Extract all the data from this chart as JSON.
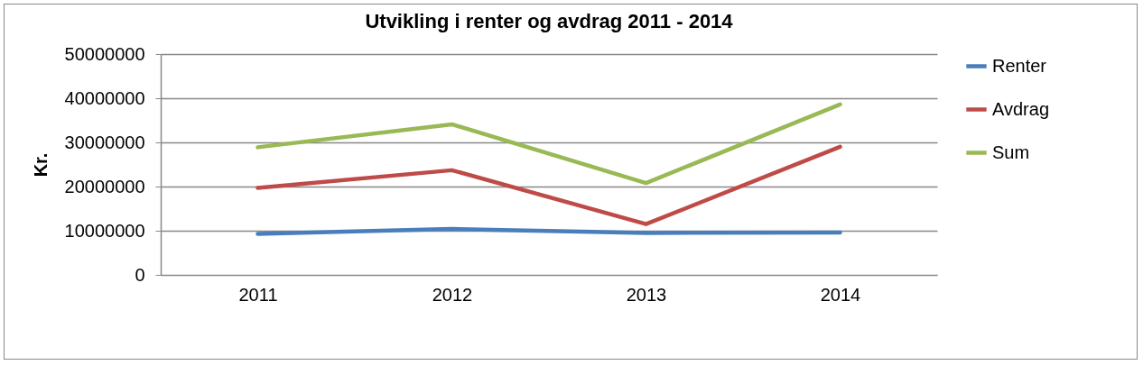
{
  "chart_data": {
    "type": "line",
    "title": "Utvikling i renter og avdrag 2011 - 2014",
    "ylabel": "Kr.",
    "categories": [
      "2011",
      "2012",
      "2013",
      "2014"
    ],
    "series": [
      {
        "name": "Renter",
        "color": "#4a7ebb",
        "values": [
          9300000,
          10400000,
          9500000,
          9600000
        ]
      },
      {
        "name": "Avdrag",
        "color": "#be4b48",
        "values": [
          19700000,
          23700000,
          11500000,
          29000000
        ]
      },
      {
        "name": "Sum",
        "color": "#98b954",
        "values": [
          28900000,
          34100000,
          20800000,
          38600000
        ]
      }
    ],
    "ylim": [
      0,
      50000000
    ],
    "yticks": [
      0,
      10000000,
      20000000,
      30000000,
      40000000,
      50000000
    ],
    "grid": "y",
    "legend": "right",
    "marker": "none",
    "line_style": "solid"
  }
}
